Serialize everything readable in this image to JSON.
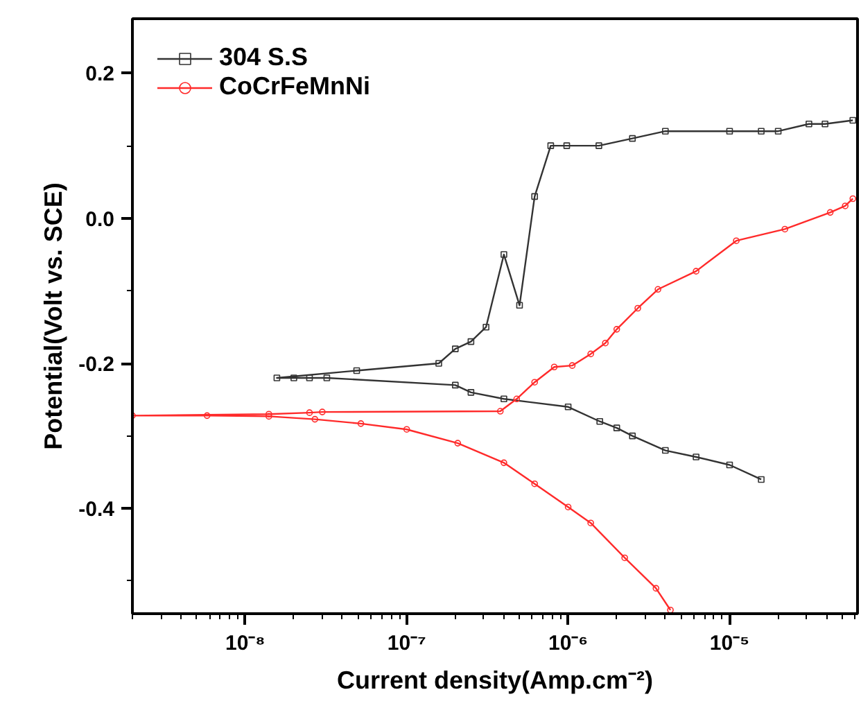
{
  "chart_data": {
    "type": "line",
    "xlabel": "Current density(Amp.cm⁻²)",
    "ylabel": "Potential(Volt vs. SCE)",
    "log": "x",
    "grid": false,
    "legend": "top left",
    "xlim": [
      2e-09,
      6.2e-05
    ],
    "ylim": [
      -0.545,
      0.275
    ],
    "xticks": [
      {
        "value": 1e-08,
        "label": "10⁻⁸"
      },
      {
        "value": 1e-07,
        "label": "10⁻⁷"
      },
      {
        "value": 1e-06,
        "label": "10⁻⁶"
      },
      {
        "value": 1e-05,
        "label": "10⁻⁵"
      }
    ],
    "yticks": [
      {
        "value": -0.4,
        "label": "-0.4"
      },
      {
        "value": -0.2,
        "label": "-0.2"
      },
      {
        "value": 0,
        "label": "0.0"
      },
      {
        "value": 0.2,
        "label": "0.2"
      }
    ],
    "series": [
      {
        "name": "304 S.S",
        "color": "#333333",
        "marker": "square",
        "x": [
          1.57e-05,
          1e-05,
          6.2e-06,
          4e-06,
          2.5e-06,
          2e-06,
          1.57e-06,
          1e-06,
          4e-07,
          2.5e-07,
          2e-07,
          3.2e-08,
          2.5e-08,
          2e-08,
          1.57e-08,
          4.9e-08,
          1.58e-07,
          2e-07,
          2.5e-07,
          3.1e-07,
          4e-07,
          5e-07,
          6.2e-07,
          7.8e-07,
          9.8e-07,
          1.55e-06,
          2.5e-06,
          4e-06,
          1e-05,
          1.57e-05,
          2e-05,
          3.1e-05,
          3.9e-05,
          5.8e-05
        ],
        "values": [
          -0.36,
          -0.34,
          -0.329,
          -0.32,
          -0.3,
          -0.289,
          -0.28,
          -0.26,
          -0.249,
          -0.24,
          -0.23,
          -0.22,
          -0.22,
          -0.22,
          -0.22,
          -0.21,
          -0.2,
          -0.18,
          -0.17,
          -0.15,
          -0.05,
          -0.12,
          0.03,
          0.1,
          0.1,
          0.1,
          0.11,
          0.12,
          0.12,
          0.12,
          0.12,
          0.13,
          0.13,
          0.135
        ]
      },
      {
        "name": "CoCrFeMnNi",
        "color": "#ff2a2a",
        "marker": "circle",
        "x": [
          4.3e-06,
          3.5e-06,
          2.24e-06,
          1.38e-06,
          1e-06,
          6.2e-07,
          4e-07,
          2.07e-07,
          1e-07,
          5.2e-08,
          2.7e-08,
          1.4e-08,
          5.8e-09,
          2e-09,
          1.4e-08,
          2.5e-08,
          3e-08,
          3.8e-07,
          4.8e-07,
          6.2e-07,
          8.2e-07,
          1.06e-06,
          1.38e-06,
          1.7e-06,
          2e-06,
          2.7e-06,
          3.6e-06,
          6.2e-06,
          1.1e-05,
          2.2e-05,
          4.2e-05,
          5.2e-05,
          5.8e-05
        ],
        "values": [
          -0.54,
          -0.51,
          -0.468,
          -0.42,
          -0.398,
          -0.366,
          -0.337,
          -0.31,
          -0.291,
          -0.283,
          -0.277,
          -0.273,
          -0.272,
          -0.272,
          -0.27,
          -0.268,
          -0.267,
          -0.266,
          -0.249,
          -0.226,
          -0.205,
          -0.203,
          -0.187,
          -0.172,
          -0.153,
          -0.124,
          -0.098,
          -0.073,
          -0.031,
          -0.015,
          0.008,
          0.017,
          0.027
        ]
      }
    ]
  }
}
